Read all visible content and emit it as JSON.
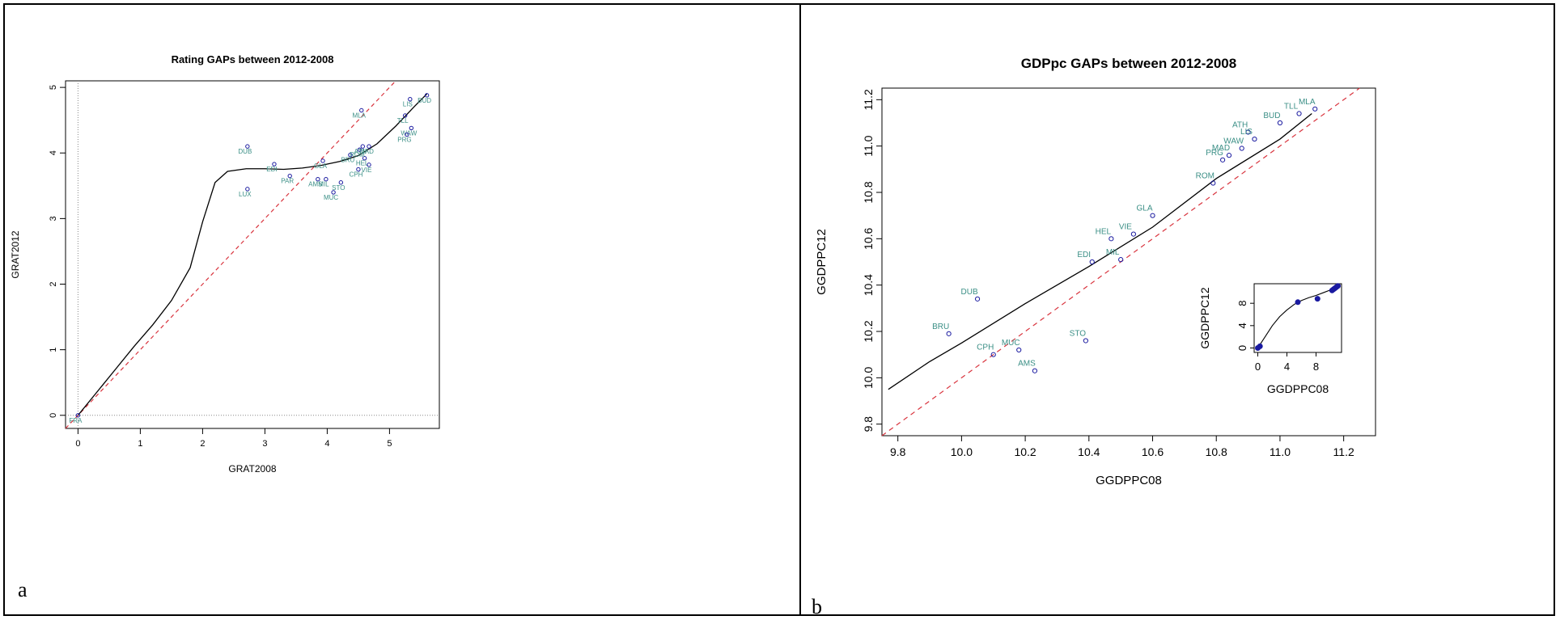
{
  "panels": [
    {
      "letter": "a"
    },
    {
      "letter": "b"
    }
  ],
  "colors": {
    "point": "#1a1aa0",
    "label": "#3b8f86",
    "fit": "#000000",
    "diagonal": "#d9343e",
    "reference": "#888888"
  },
  "chart_data": [
    {
      "type": "scatter",
      "title": "Rating GAPs between 2012-2008",
      "xlabel": "GRAT2008",
      "ylabel": "GRAT2012",
      "xlim": [
        -0.2,
        5.8
      ],
      "ylim": [
        -0.2,
        5.1
      ],
      "xticks": [
        "0",
        "1",
        "2",
        "3",
        "4",
        "5"
      ],
      "yticks": [
        "0",
        "1",
        "2",
        "3",
        "4",
        "5"
      ],
      "grid": false,
      "reference_lines": [
        "x=0",
        "y=0",
        "y=x"
      ],
      "points": [
        {
          "label": "FRA",
          "x": 0.0,
          "y": 0.0
        },
        {
          "label": "DUB",
          "x": 2.72,
          "y": 4.1
        },
        {
          "label": "LUX",
          "x": 2.72,
          "y": 3.45
        },
        {
          "label": "EDI",
          "x": 3.15,
          "y": 3.83
        },
        {
          "label": "PAR",
          "x": 3.4,
          "y": 3.65
        },
        {
          "label": "GLA",
          "x": 3.93,
          "y": 3.88
        },
        {
          "label": "AMS",
          "x": 3.85,
          "y": 3.6
        },
        {
          "label": "MIL",
          "x": 3.98,
          "y": 3.6
        },
        {
          "label": "MUC",
          "x": 4.1,
          "y": 3.4
        },
        {
          "label": "STO",
          "x": 4.22,
          "y": 3.55
        },
        {
          "label": "BRU",
          "x": 4.37,
          "y": 3.97
        },
        {
          "label": "CPH",
          "x": 4.5,
          "y": 3.75
        },
        {
          "label": "HEL",
          "x": 4.6,
          "y": 3.92
        },
        {
          "label": "VIE",
          "x": 4.67,
          "y": 3.82
        },
        {
          "label": "ROM",
          "x": 4.52,
          "y": 4.05
        },
        {
          "label": "MAD",
          "x": 4.67,
          "y": 4.1
        },
        {
          "label": "ATH",
          "x": 4.57,
          "y": 4.1
        },
        {
          "label": "MLA",
          "x": 4.55,
          "y": 4.65
        },
        {
          "label": "LIS",
          "x": 5.33,
          "y": 4.82
        },
        {
          "label": "BUD",
          "x": 5.6,
          "y": 4.88
        },
        {
          "label": "TLL",
          "x": 5.25,
          "y": 4.57
        },
        {
          "label": "WAW",
          "x": 5.35,
          "y": 4.38
        },
        {
          "label": "PRG",
          "x": 5.28,
          "y": 4.28
        }
      ],
      "fit_curve": [
        [
          0,
          0
        ],
        [
          0.3,
          0.35
        ],
        [
          0.6,
          0.7
        ],
        [
          0.9,
          1.05
        ],
        [
          1.2,
          1.38
        ],
        [
          1.5,
          1.75
        ],
        [
          1.8,
          2.25
        ],
        [
          2.0,
          2.95
        ],
        [
          2.2,
          3.55
        ],
        [
          2.4,
          3.72
        ],
        [
          2.7,
          3.76
        ],
        [
          3.0,
          3.76
        ],
        [
          3.3,
          3.75
        ],
        [
          3.6,
          3.77
        ],
        [
          3.9,
          3.81
        ],
        [
          4.2,
          3.87
        ],
        [
          4.5,
          3.96
        ],
        [
          4.8,
          4.14
        ],
        [
          5.1,
          4.41
        ],
        [
          5.4,
          4.71
        ],
        [
          5.6,
          4.9
        ]
      ]
    },
    {
      "type": "scatter",
      "title": "GDPpc GAPs between 2012-2008",
      "xlabel": "GGDPPC08",
      "ylabel": "GGDPPC12",
      "xlim": [
        9.75,
        11.3
      ],
      "ylim": [
        9.75,
        11.25
      ],
      "xticks": [
        "9.8",
        "10.0",
        "10.2",
        "10.4",
        "10.6",
        "10.8",
        "11.0",
        "11.2"
      ],
      "yticks": [
        "9.8",
        "10.0",
        "10.2",
        "10.4",
        "10.6",
        "10.8",
        "11.0",
        "11.2"
      ],
      "grid": false,
      "reference_lines": [
        "y=x"
      ],
      "points": [
        {
          "label": "DUB",
          "x": 10.05,
          "y": 10.34
        },
        {
          "label": "BRU",
          "x": 9.96,
          "y": 10.19
        },
        {
          "label": "CPH",
          "x": 10.1,
          "y": 10.1
        },
        {
          "label": "MUC",
          "x": 10.18,
          "y": 10.12
        },
        {
          "label": "AMS",
          "x": 10.23,
          "y": 10.03
        },
        {
          "label": "STO",
          "x": 10.39,
          "y": 10.16
        },
        {
          "label": "EDI",
          "x": 10.41,
          "y": 10.5
        },
        {
          "label": "HEL",
          "x": 10.47,
          "y": 10.6
        },
        {
          "label": "MIL",
          "x": 10.5,
          "y": 10.51
        },
        {
          "label": "VIE",
          "x": 10.54,
          "y": 10.62
        },
        {
          "label": "GLA",
          "x": 10.6,
          "y": 10.7
        },
        {
          "label": "ROM",
          "x": 10.79,
          "y": 10.84
        },
        {
          "label": "PRG",
          "x": 10.82,
          "y": 10.94
        },
        {
          "label": "MAD",
          "x": 10.84,
          "y": 10.96
        },
        {
          "label": "WAW",
          "x": 10.88,
          "y": 10.99
        },
        {
          "label": "ATH",
          "x": 10.9,
          "y": 11.06
        },
        {
          "label": "LIS",
          "x": 10.92,
          "y": 11.03
        },
        {
          "label": "BUD",
          "x": 11.0,
          "y": 11.1
        },
        {
          "label": "TLL",
          "x": 11.06,
          "y": 11.14
        },
        {
          "label": "MLA",
          "x": 11.11,
          "y": 11.16
        }
      ],
      "fit_curve": [
        [
          9.77,
          9.95
        ],
        [
          9.9,
          10.07
        ],
        [
          10.0,
          10.15
        ],
        [
          10.2,
          10.32
        ],
        [
          10.4,
          10.48
        ],
        [
          10.6,
          10.65
        ],
        [
          10.8,
          10.86
        ],
        [
          11.0,
          11.03
        ],
        [
          11.1,
          11.14
        ]
      ],
      "inset": {
        "type": "scatter",
        "xlabel": "GGDPPC08",
        "ylabel": "GGDPPC12",
        "xlim": [
          -0.5,
          11.5
        ],
        "ylim": [
          -0.8,
          11.5
        ],
        "xticks": [
          "0",
          "4",
          "8"
        ],
        "yticks": [
          "0",
          "4",
          "8"
        ],
        "points": [
          {
            "x": 0,
            "y": 0
          },
          {
            "x": 0.3,
            "y": 0.3
          },
          {
            "x": 5.5,
            "y": 8.2
          },
          {
            "x": 8.2,
            "y": 8.8
          },
          {
            "x": 10.2,
            "y": 10.3
          },
          {
            "x": 10.4,
            "y": 10.5
          },
          {
            "x": 10.6,
            "y": 10.7
          },
          {
            "x": 10.8,
            "y": 10.9
          },
          {
            "x": 11.0,
            "y": 11.1
          }
        ],
        "fit_curve": [
          [
            0,
            0
          ],
          [
            1,
            2
          ],
          [
            2,
            4
          ],
          [
            3,
            5.6
          ],
          [
            4,
            6.8
          ],
          [
            5,
            7.8
          ],
          [
            6,
            8.5
          ],
          [
            7,
            9.0
          ],
          [
            8,
            9.4
          ],
          [
            9,
            9.9
          ],
          [
            10,
            10.4
          ],
          [
            11,
            11.0
          ]
        ]
      }
    }
  ]
}
